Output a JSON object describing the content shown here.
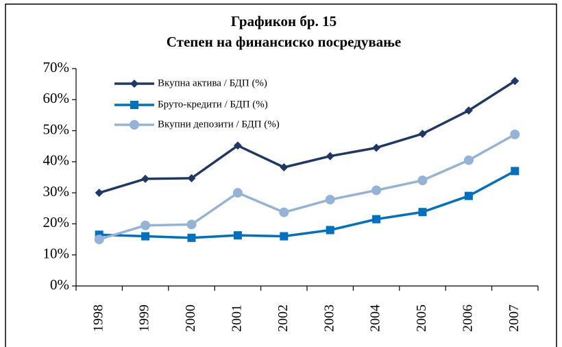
{
  "chart_data": {
    "type": "line",
    "title": "Графикон бр. 15",
    "subtitle": "Степен на финансиско  посредување",
    "categories": [
      "1998",
      "1999",
      "2000",
      "2001",
      "2002",
      "2003",
      "2004",
      "2005",
      "2006",
      "2007"
    ],
    "series": [
      {
        "name": "Вкупна актива / БДП (%)",
        "color": "#1f3864",
        "marker": "diamond",
        "values": [
          30,
          34.5,
          34.7,
          45.2,
          38.2,
          41.8,
          44.5,
          49,
          56.5,
          66
        ]
      },
      {
        "name": "Бруто-кредити / БДП (%)",
        "color": "#0070c0",
        "marker": "square",
        "values": [
          16.5,
          16,
          15.5,
          16.3,
          16,
          18,
          21.5,
          23.8,
          29,
          37
        ]
      },
      {
        "name": "Вкупни депозити / БДП (%)",
        "color": "#95b3d7",
        "marker": "circle",
        "values": [
          15,
          19.5,
          19.8,
          30,
          23.7,
          27.8,
          30.8,
          34,
          40.5,
          48.8
        ]
      }
    ],
    "ylim": [
      0,
      70
    ],
    "yticks": [
      {
        "value": 0,
        "label": "0%"
      },
      {
        "value": 10,
        "label": "10%"
      },
      {
        "value": 20,
        "label": "20%"
      },
      {
        "value": 30,
        "label": "30%"
      },
      {
        "value": 40,
        "label": "40%"
      },
      {
        "value": 50,
        "label": "50%"
      },
      {
        "value": 60,
        "label": "60%"
      },
      {
        "value": 70,
        "label": "70%"
      }
    ],
    "grid": false,
    "legend": "top-left"
  }
}
